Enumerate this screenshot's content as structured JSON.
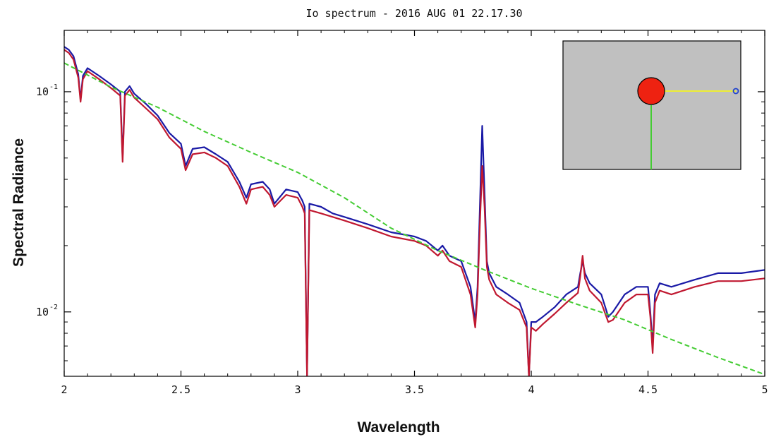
{
  "chart_data": {
    "type": "line",
    "title": "Io spectrum - 2016 AUG 01 22.17.30",
    "xlabel": "Wavelength",
    "ylabel": "Spectral Radiance",
    "xlim": [
      2,
      5
    ],
    "ylim": [
      0.0051,
      0.19
    ],
    "yscale": "log",
    "grid": false,
    "x_ticks": [
      {
        "value": 2,
        "label": "2"
      },
      {
        "value": 2.5,
        "label": "2.5"
      },
      {
        "value": 3,
        "label": "3"
      },
      {
        "value": 3.5,
        "label": "3.5"
      },
      {
        "value": 4,
        "label": "4"
      },
      {
        "value": 4.5,
        "label": "4.5"
      },
      {
        "value": 5,
        "label": "5"
      }
    ],
    "y_ticks": [
      {
        "value": 0.01,
        "base": "10",
        "exp": "-2"
      },
      {
        "value": 0.1,
        "base": "10",
        "exp": "-1"
      }
    ],
    "series": [
      {
        "color": "#1a1aa6",
        "x": [
          2.0,
          2.02,
          2.04,
          2.06,
          2.07,
          2.08,
          2.1,
          2.15,
          2.2,
          2.24,
          2.25,
          2.26,
          2.28,
          2.3,
          2.35,
          2.4,
          2.45,
          2.5,
          2.52,
          2.55,
          2.6,
          2.65,
          2.7,
          2.75,
          2.78,
          2.8,
          2.85,
          2.88,
          2.9,
          2.95,
          3.0,
          3.02,
          3.03,
          3.04,
          3.05,
          3.1,
          3.15,
          3.2,
          3.3,
          3.4,
          3.5,
          3.55,
          3.6,
          3.62,
          3.65,
          3.7,
          3.74,
          3.76,
          3.77,
          3.78,
          3.79,
          3.8,
          3.81,
          3.82,
          3.85,
          3.9,
          3.95,
          3.98,
          3.99,
          4.0,
          4.02,
          4.05,
          4.1,
          4.15,
          4.2,
          4.21,
          4.22,
          4.23,
          4.25,
          4.3,
          4.33,
          4.35,
          4.4,
          4.45,
          4.5,
          4.51,
          4.52,
          4.53,
          4.55,
          4.6,
          4.7,
          4.8,
          4.9,
          5.0
        ],
        "y": [
          0.16,
          0.155,
          0.145,
          0.12,
          0.092,
          0.118,
          0.128,
          0.118,
          0.108,
          0.1,
          0.05,
          0.1,
          0.106,
          0.098,
          0.088,
          0.078,
          0.065,
          0.058,
          0.046,
          0.055,
          0.056,
          0.052,
          0.048,
          0.039,
          0.033,
          0.038,
          0.039,
          0.036,
          0.031,
          0.036,
          0.035,
          0.032,
          0.03,
          0.0051,
          0.031,
          0.03,
          0.028,
          0.027,
          0.025,
          0.023,
          0.022,
          0.021,
          0.019,
          0.02,
          0.018,
          0.017,
          0.013,
          0.009,
          0.013,
          0.03,
          0.07,
          0.035,
          0.017,
          0.015,
          0.013,
          0.012,
          0.011,
          0.009,
          0.0051,
          0.009,
          0.009,
          0.0095,
          0.0105,
          0.012,
          0.013,
          0.015,
          0.017,
          0.015,
          0.0135,
          0.012,
          0.0095,
          0.01,
          0.012,
          0.013,
          0.013,
          0.01,
          0.007,
          0.012,
          0.0135,
          0.013,
          0.014,
          0.015,
          0.015,
          0.0155
        ]
      },
      {
        "color": "#c01830",
        "x": [
          2.0,
          2.02,
          2.04,
          2.06,
          2.07,
          2.08,
          2.1,
          2.15,
          2.2,
          2.24,
          2.25,
          2.26,
          2.28,
          2.3,
          2.35,
          2.4,
          2.45,
          2.5,
          2.52,
          2.55,
          2.6,
          2.65,
          2.7,
          2.75,
          2.78,
          2.8,
          2.85,
          2.88,
          2.9,
          2.95,
          3.0,
          3.02,
          3.03,
          3.04,
          3.05,
          3.1,
          3.15,
          3.2,
          3.3,
          3.4,
          3.5,
          3.55,
          3.6,
          3.62,
          3.65,
          3.7,
          3.74,
          3.76,
          3.77,
          3.78,
          3.79,
          3.8,
          3.81,
          3.82,
          3.85,
          3.9,
          3.95,
          3.98,
          3.99,
          4.0,
          4.02,
          4.05,
          4.1,
          4.15,
          4.2,
          4.21,
          4.22,
          4.23,
          4.25,
          4.3,
          4.33,
          4.35,
          4.4,
          4.45,
          4.5,
          4.51,
          4.52,
          4.53,
          4.55,
          4.6,
          4.7,
          4.8,
          4.9,
          5.0
        ],
        "y": [
          0.155,
          0.15,
          0.14,
          0.116,
          0.09,
          0.114,
          0.124,
          0.114,
          0.104,
          0.096,
          0.048,
          0.096,
          0.102,
          0.094,
          0.084,
          0.075,
          0.062,
          0.055,
          0.044,
          0.052,
          0.053,
          0.05,
          0.046,
          0.037,
          0.031,
          0.036,
          0.037,
          0.034,
          0.03,
          0.034,
          0.033,
          0.03,
          0.028,
          0.0051,
          0.029,
          0.028,
          0.027,
          0.026,
          0.024,
          0.022,
          0.021,
          0.02,
          0.018,
          0.019,
          0.017,
          0.016,
          0.012,
          0.0085,
          0.012,
          0.025,
          0.046,
          0.03,
          0.016,
          0.014,
          0.012,
          0.011,
          0.0102,
          0.0085,
          0.0051,
          0.0085,
          0.0082,
          0.0088,
          0.0098,
          0.011,
          0.0122,
          0.0145,
          0.018,
          0.0142,
          0.0125,
          0.011,
          0.009,
          0.0092,
          0.011,
          0.012,
          0.012,
          0.0095,
          0.0065,
          0.011,
          0.0125,
          0.012,
          0.013,
          0.0138,
          0.0138,
          0.0142
        ]
      },
      {
        "color": "#44cc33",
        "dashed": true,
        "x": [
          2.0,
          2.2,
          2.4,
          2.6,
          2.8,
          3.0,
          3.2,
          3.4,
          3.6,
          3.8,
          4.0,
          4.2,
          4.4,
          4.6,
          4.8,
          5.0
        ],
        "y": [
          0.135,
          0.105,
          0.085,
          0.066,
          0.053,
          0.043,
          0.033,
          0.024,
          0.019,
          0.0155,
          0.0128,
          0.0108,
          0.0092,
          0.0075,
          0.0062,
          0.0052
        ]
      }
    ]
  },
  "inset": {
    "background": "#c0c0c0",
    "planet_color": "#ee2211",
    "horizontal_line_color": "#eeee33",
    "vertical_line_color": "#44cc33",
    "marker_color": "#2244cc"
  }
}
